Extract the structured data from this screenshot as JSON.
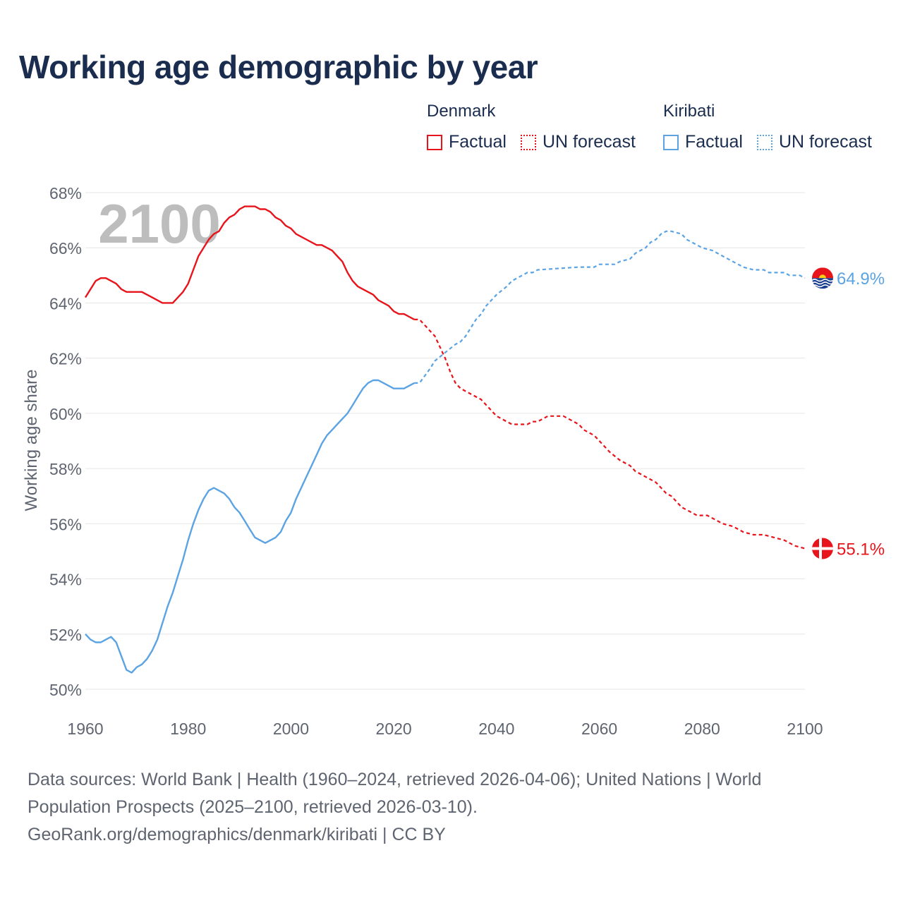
{
  "title": "Working age demographic by year",
  "legend": {
    "groups": [
      {
        "name": "Denmark",
        "factual_label": "Factual",
        "forecast_label": "UN forecast",
        "color": "#e8141b"
      },
      {
        "name": "Kiribati",
        "factual_label": "Factual",
        "forecast_label": "UN forecast",
        "color": "#5ba3e3"
      }
    ]
  },
  "year_watermark": "2100",
  "chart_data": {
    "type": "line",
    "title": "Working age demographic by year",
    "xlabel": "",
    "ylabel": "Working age share",
    "xlim": [
      1960,
      2100
    ],
    "ylim": [
      50,
      68
    ],
    "x_ticks": [
      1960,
      1980,
      2000,
      2020,
      2040,
      2060,
      2080,
      2100
    ],
    "y_ticks": [
      50,
      52,
      54,
      56,
      58,
      60,
      62,
      64,
      66,
      68
    ],
    "y_tick_suffix": "%",
    "grid": true,
    "factual_end_year": 2024,
    "series": [
      {
        "name": "Denmark",
        "color": "#e8141b",
        "end_label": "55.1%",
        "flag": "denmark-flag",
        "points": [
          [
            1960,
            64.2
          ],
          [
            1962,
            64.8
          ],
          [
            1963,
            64.9
          ],
          [
            1964,
            64.9
          ],
          [
            1966,
            64.7
          ],
          [
            1967,
            64.5
          ],
          [
            1968,
            64.4
          ],
          [
            1971,
            64.4
          ],
          [
            1973,
            64.2
          ],
          [
            1975,
            64.0
          ],
          [
            1977,
            64.0
          ],
          [
            1979,
            64.4
          ],
          [
            1980,
            64.7
          ],
          [
            1981,
            65.2
          ],
          [
            1982,
            65.7
          ],
          [
            1983,
            66.0
          ],
          [
            1984,
            66.3
          ],
          [
            1985,
            66.5
          ],
          [
            1986,
            66.6
          ],
          [
            1987,
            66.9
          ],
          [
            1988,
            67.1
          ],
          [
            1989,
            67.2
          ],
          [
            1990,
            67.4
          ],
          [
            1991,
            67.5
          ],
          [
            1993,
            67.5
          ],
          [
            1994,
            67.4
          ],
          [
            1995,
            67.4
          ],
          [
            1996,
            67.3
          ],
          [
            1997,
            67.1
          ],
          [
            1998,
            67.0
          ],
          [
            1999,
            66.8
          ],
          [
            2000,
            66.7
          ],
          [
            2001,
            66.5
          ],
          [
            2003,
            66.3
          ],
          [
            2005,
            66.1
          ],
          [
            2006,
            66.1
          ],
          [
            2008,
            65.9
          ],
          [
            2009,
            65.7
          ],
          [
            2010,
            65.5
          ],
          [
            2011,
            65.1
          ],
          [
            2012,
            64.8
          ],
          [
            2013,
            64.6
          ],
          [
            2014,
            64.5
          ],
          [
            2016,
            64.3
          ],
          [
            2017,
            64.1
          ],
          [
            2019,
            63.9
          ],
          [
            2020,
            63.7
          ],
          [
            2021,
            63.6
          ],
          [
            2022,
            63.6
          ],
          [
            2023,
            63.5
          ],
          [
            2024,
            63.4
          ],
          [
            2025,
            63.4
          ],
          [
            2026,
            63.2
          ],
          [
            2027,
            63.0
          ],
          [
            2028,
            62.8
          ],
          [
            2029,
            62.4
          ],
          [
            2030,
            62.0
          ],
          [
            2031,
            61.5
          ],
          [
            2032,
            61.1
          ],
          [
            2033,
            60.9
          ],
          [
            2035,
            60.7
          ],
          [
            2037,
            60.5
          ],
          [
            2038,
            60.3
          ],
          [
            2039,
            60.1
          ],
          [
            2040,
            59.9
          ],
          [
            2042,
            59.7
          ],
          [
            2043,
            59.6
          ],
          [
            2046,
            59.6
          ],
          [
            2047,
            59.7
          ],
          [
            2048,
            59.7
          ],
          [
            2049,
            59.8
          ],
          [
            2050,
            59.9
          ],
          [
            2053,
            59.9
          ],
          [
            2054,
            59.8
          ],
          [
            2056,
            59.6
          ],
          [
            2057,
            59.4
          ],
          [
            2059,
            59.2
          ],
          [
            2060,
            59.0
          ],
          [
            2062,
            58.6
          ],
          [
            2064,
            58.3
          ],
          [
            2066,
            58.1
          ],
          [
            2067,
            57.9
          ],
          [
            2069,
            57.7
          ],
          [
            2071,
            57.5
          ],
          [
            2073,
            57.1
          ],
          [
            2074,
            57.0
          ],
          [
            2075,
            56.8
          ],
          [
            2076,
            56.6
          ],
          [
            2078,
            56.4
          ],
          [
            2079,
            56.3
          ],
          [
            2081,
            56.3
          ],
          [
            2083,
            56.1
          ],
          [
            2084,
            56.0
          ],
          [
            2086,
            55.9
          ],
          [
            2088,
            55.7
          ],
          [
            2090,
            55.6
          ],
          [
            2092,
            55.6
          ],
          [
            2094,
            55.5
          ],
          [
            2096,
            55.4
          ],
          [
            2098,
            55.2
          ],
          [
            2100,
            55.1
          ]
        ]
      },
      {
        "name": "Kiribati",
        "color": "#5ba3e3",
        "end_label": "64.9%",
        "flag": "kiribati-flag",
        "points": [
          [
            1960,
            52.0
          ],
          [
            1961,
            51.8
          ],
          [
            1962,
            51.7
          ],
          [
            1963,
            51.7
          ],
          [
            1964,
            51.8
          ],
          [
            1965,
            51.9
          ],
          [
            1966,
            51.7
          ],
          [
            1967,
            51.2
          ],
          [
            1968,
            50.7
          ],
          [
            1969,
            50.6
          ],
          [
            1970,
            50.8
          ],
          [
            1971,
            50.9
          ],
          [
            1972,
            51.1
          ],
          [
            1973,
            51.4
          ],
          [
            1974,
            51.8
          ],
          [
            1975,
            52.4
          ],
          [
            1976,
            53.0
          ],
          [
            1977,
            53.5
          ],
          [
            1978,
            54.1
          ],
          [
            1979,
            54.7
          ],
          [
            1980,
            55.4
          ],
          [
            1981,
            56.0
          ],
          [
            1982,
            56.5
          ],
          [
            1983,
            56.9
          ],
          [
            1984,
            57.2
          ],
          [
            1985,
            57.3
          ],
          [
            1986,
            57.2
          ],
          [
            1987,
            57.1
          ],
          [
            1988,
            56.9
          ],
          [
            1989,
            56.6
          ],
          [
            1990,
            56.4
          ],
          [
            1991,
            56.1
          ],
          [
            1992,
            55.8
          ],
          [
            1993,
            55.5
          ],
          [
            1994,
            55.4
          ],
          [
            1995,
            55.3
          ],
          [
            1996,
            55.4
          ],
          [
            1997,
            55.5
          ],
          [
            1998,
            55.7
          ],
          [
            1999,
            56.1
          ],
          [
            2000,
            56.4
          ],
          [
            2001,
            56.9
          ],
          [
            2002,
            57.3
          ],
          [
            2003,
            57.7
          ],
          [
            2004,
            58.1
          ],
          [
            2005,
            58.5
          ],
          [
            2006,
            58.9
          ],
          [
            2007,
            59.2
          ],
          [
            2008,
            59.4
          ],
          [
            2009,
            59.6
          ],
          [
            2010,
            59.8
          ],
          [
            2011,
            60.0
          ],
          [
            2012,
            60.3
          ],
          [
            2013,
            60.6
          ],
          [
            2014,
            60.9
          ],
          [
            2015,
            61.1
          ],
          [
            2016,
            61.2
          ],
          [
            2017,
            61.2
          ],
          [
            2018,
            61.1
          ],
          [
            2019,
            61.0
          ],
          [
            2020,
            60.9
          ],
          [
            2022,
            60.9
          ],
          [
            2023,
            61.0
          ],
          [
            2024,
            61.1
          ],
          [
            2025,
            61.1
          ],
          [
            2027,
            61.6
          ],
          [
            2028,
            61.9
          ],
          [
            2030,
            62.2
          ],
          [
            2032,
            62.5
          ],
          [
            2033,
            62.6
          ],
          [
            2034,
            62.8
          ],
          [
            2035,
            63.1
          ],
          [
            2036,
            63.4
          ],
          [
            2037,
            63.6
          ],
          [
            2038,
            63.9
          ],
          [
            2039,
            64.1
          ],
          [
            2040,
            64.3
          ],
          [
            2042,
            64.6
          ],
          [
            2043,
            64.8
          ],
          [
            2044,
            64.9
          ],
          [
            2045,
            65.0
          ],
          [
            2046,
            65.1
          ],
          [
            2047,
            65.1
          ],
          [
            2048,
            65.2
          ],
          [
            2056,
            65.3
          ],
          [
            2058,
            65.3
          ],
          [
            2059,
            65.3
          ],
          [
            2060,
            65.4
          ],
          [
            2063,
            65.4
          ],
          [
            2064,
            65.5
          ],
          [
            2066,
            65.6
          ],
          [
            2067,
            65.8
          ],
          [
            2069,
            66.0
          ],
          [
            2070,
            66.2
          ],
          [
            2071,
            66.3
          ],
          [
            2072,
            66.5
          ],
          [
            2073,
            66.6
          ],
          [
            2074,
            66.6
          ],
          [
            2076,
            66.5
          ],
          [
            2077,
            66.3
          ],
          [
            2078,
            66.2
          ],
          [
            2079,
            66.1
          ],
          [
            2080,
            66.0
          ],
          [
            2082,
            65.9
          ],
          [
            2084,
            65.7
          ],
          [
            2086,
            65.5
          ],
          [
            2087,
            65.4
          ],
          [
            2088,
            65.3
          ],
          [
            2090,
            65.2
          ],
          [
            2092,
            65.2
          ],
          [
            2093,
            65.1
          ],
          [
            2096,
            65.1
          ],
          [
            2097,
            65.0
          ],
          [
            2099,
            65.0
          ],
          [
            2100,
            64.9
          ]
        ]
      }
    ]
  },
  "footer": {
    "line1": "Data sources: World Bank | Health (1960–2024, retrieved 2026-04-06); United Nations | World",
    "line2": "Population Prospects (2025–2100, retrieved 2026-03-10).",
    "line3": "GeoRank.org/demographics/denmark/kiribati | CC BY"
  }
}
